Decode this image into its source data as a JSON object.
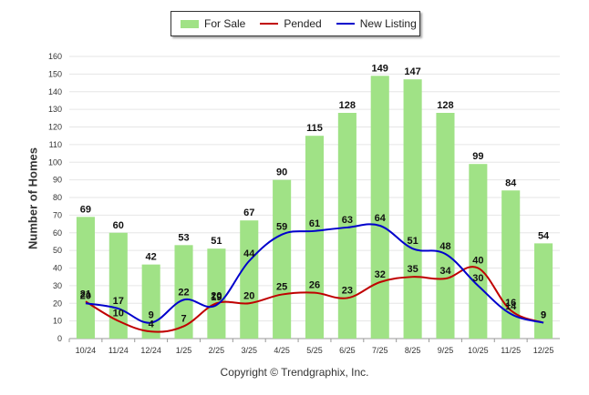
{
  "chart_data": {
    "type": "bar+line",
    "categories": [
      "10/24",
      "11/24",
      "12/24",
      "1/25",
      "2/25",
      "3/25",
      "4/25",
      "5/25",
      "6/25",
      "7/25",
      "8/25",
      "9/25",
      "10/25",
      "11/25",
      "12/25"
    ],
    "series": [
      {
        "name": "For Sale",
        "kind": "bar",
        "color": "#a0e286",
        "values": [
          69,
          60,
          42,
          53,
          51,
          67,
          90,
          115,
          128,
          149,
          147,
          128,
          99,
          84,
          54
        ]
      },
      {
        "name": "Pended",
        "kind": "line",
        "color": "#c00000",
        "values": [
          21,
          10,
          4,
          7,
          20,
          20,
          25,
          26,
          23,
          32,
          35,
          34,
          40,
          16,
          9
        ]
      },
      {
        "name": "New Listing",
        "kind": "line",
        "color": "#0000cc",
        "values": [
          20,
          17,
          9,
          22,
          19,
          44,
          59,
          61,
          63,
          64,
          51,
          48,
          30,
          14,
          9
        ]
      }
    ],
    "ylabel": "Number of Homes",
    "ylim": [
      0,
      160
    ],
    "yticks": [
      0,
      10,
      20,
      30,
      40,
      50,
      60,
      70,
      80,
      90,
      100,
      110,
      120,
      130,
      140,
      150,
      160
    ],
    "legend_position": "top-center",
    "grid": true
  },
  "footer": {
    "copyright": "Copyright © Trendgraphix, Inc."
  }
}
